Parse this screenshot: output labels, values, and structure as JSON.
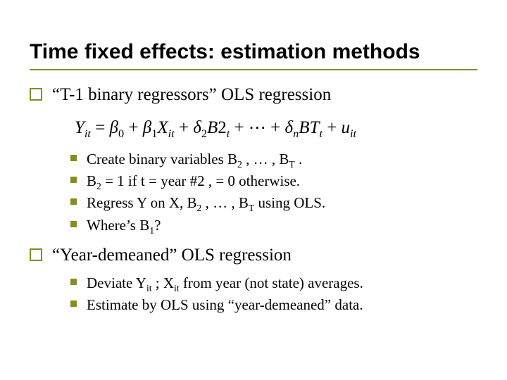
{
  "colors": {
    "accent": "#8a8a22",
    "background": "#ffffff",
    "text": "#000000"
  },
  "typography": {
    "title_family": "Arial",
    "title_size_pt": 30,
    "body_family": "Times New Roman",
    "lvl1_size_pt": 25,
    "lvl2_size_pt": 21,
    "equation_size_pt": 25
  },
  "title": "Time fixed effects: estimation methods",
  "bullets": [
    {
      "text_html": "“T-1 binary regressors” OLS regression",
      "equation_html": "<span class='ital'>Y<span class='sub'>it</span></span> = <span class='ital'>β</span><span class='sub'>0</span> + <span class='ital'>β</span><span class='sub'>1</span><span class='ital'>X<span class='sub'>it</span></span> + <span class='ital'>δ</span><span class='sub'>2</span><span class='ital'>B</span>2<span class='sub'><span class='ital'>t</span></span> + ⋯ + <span class='ital'>δ<span class='sub'>n</span>BT<span class='sub'>t</span></span> + <span class='ital'>u<span class='sub'>it</span></span>",
      "children": [
        "Create binary variables B<span class='sub'>2</span> , … , B<span class='sub'>T</span> .",
        "B<span class='sub'>2</span> = 1 if t = year #2 , = 0 otherwise.",
        "Regress Y on X, B<span class='sub'>2</span> , … , B<span class='sub'>T</span> using OLS.",
        "Where’s B<span class='sub'>1</span>?"
      ]
    },
    {
      "text_html": "“Year-demeaned” OLS regression",
      "children": [
        "Deviate Y<span class='sub'>it</span> ; X<span class='sub'>it</span> from year (not state) averages.",
        "Estimate by OLS using “year-demeaned” data."
      ]
    }
  ]
}
